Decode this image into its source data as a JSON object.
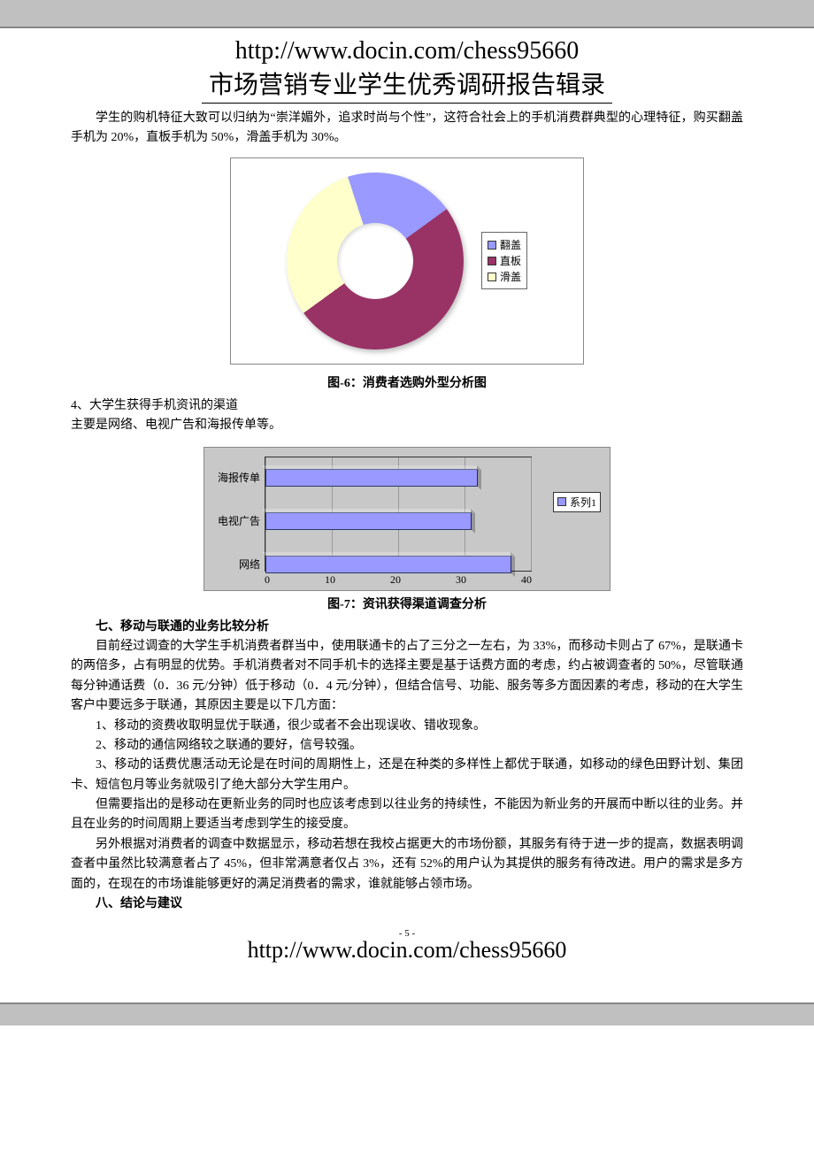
{
  "header": {
    "url": "http://www.docin.com/chess95660",
    "title": "市场营销专业学生优秀调研报告辑录"
  },
  "intro_p1": "学生的购机特征大致可以归纳为“崇洋媚外，追求时尚与个性”，这符合社会上的手机消费群典型的心理特征，购买翻盖手机为 20%，直板手机为 50%，滑盖手机为 30%。",
  "donut": {
    "type": "donut",
    "caption": "图-6：消费者选购外型分析图",
    "series": [
      {
        "label": "翻盖",
        "value": 20,
        "color": "#9999ff"
      },
      {
        "label": "直板",
        "value": 50,
        "color": "#993366"
      },
      {
        "label": "滑盖",
        "value": 30,
        "color": "#ffffcc"
      }
    ],
    "border_color": "#888888",
    "background_color": "#ffffff",
    "hole_ratio": 0.43
  },
  "para_4_heading": "4、大学生获得手机资讯的渠道",
  "para_4_body": "主要是网络、电视广告和海报传单等。",
  "bar": {
    "type": "bar-horizontal",
    "caption": "图-7：资讯获得渠道调查分析",
    "legend_label": "系列1",
    "bar_color": "#9999ff",
    "bar_border": "#2a3a66",
    "plot_bg": "#c8c8c8",
    "axis_color": "#333333",
    "grid_color": "#999999",
    "xlim": [
      0,
      40
    ],
    "xtick_step": 10,
    "xticks": [
      "0",
      "10",
      "20",
      "30",
      "40"
    ],
    "categories": [
      {
        "label": "海报传单",
        "value": 32
      },
      {
        "label": "电视广告",
        "value": 31
      },
      {
        "label": "网络",
        "value": 37
      }
    ]
  },
  "section7_title": "七、移动与联通的业务比较分析",
  "section7_p1": "目前经过调查的大学生手机消费者群当中，使用联通卡的占了三分之一左右，为 33%，而移动卡则占了 67%，是联通卡的两倍多，占有明显的优势。手机消费者对不同手机卡的选择主要是基于话费方面的考虑，约占被调查者的 50%，尽管联通每分钟通话费（0．36 元/分钟）低于移动（0．4 元/分钟），但结合信号、功能、服务等多方面因素的考虑，移动的在大学生客户中要远多于联通，其原因主要是以下几方面：",
  "section7_li1": "1、移动的资费收取明显优于联通，很少或者不会出现误收、错收现象。",
  "section7_li2": "2、移动的通信网络较之联通的要好，信号较强。",
  "section7_li3": "3、移动的话费优惠活动无论是在时间的周期性上，还是在种类的多样性上都优于联通，如移动的绿色田野计划、集团卡、短信包月等业务就吸引了绝大部分大学生用户。",
  "section7_p2": "但需要指出的是移动在更新业务的同时也应该考虑到以往业务的持续性，不能因为新业务的开展而中断以往的业务。并且在业务的时间周期上要适当考虑到学生的接受度。",
  "section7_p3": "另外根据对消费者的调查中数据显示，移动若想在我校占据更大的市场份额，其服务有待于进一步的提高，数据表明调查者中虽然比较满意者占了 45%，但非常满意者仅占 3%，还有 52%的用户认为其提供的服务有待改进。用户的需求是多方面的，在现在的市场谁能够更好的满足消费者的需求，谁就能够占领市场。",
  "section8_title": "八、结论与建议",
  "footer": {
    "page_number": "- 5 -",
    "url": "http://www.docin.com/chess95660"
  }
}
